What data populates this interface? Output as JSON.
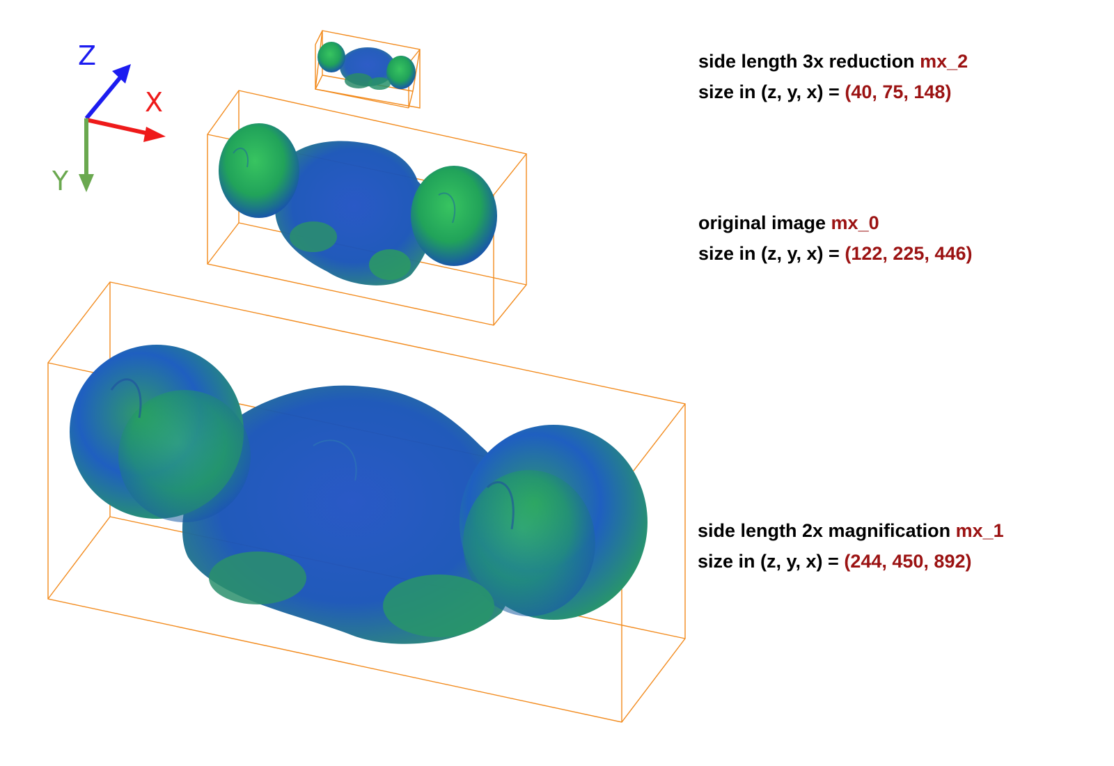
{
  "axes": {
    "z": {
      "label": "Z",
      "color": "#1c1cf0"
    },
    "x": {
      "label": "X",
      "color": "#ee1a1a"
    },
    "y": {
      "label": "Y",
      "color": "#6aa84f"
    }
  },
  "colors": {
    "box_outline": "#f28a1c",
    "volume_blue": "#1a3fc8",
    "volume_green": "#2fbf4a",
    "highlight_text": "#9b1212"
  },
  "volumes": [
    {
      "id": "mx_2",
      "line1_prefix": "side length 3x reduction ",
      "line1_name": "mx_2",
      "line2_prefix": "size in (z, y, x) = ",
      "line2_size": "(40, 75, 148)"
    },
    {
      "id": "mx_0",
      "line1_prefix": "original image ",
      "line1_name": "mx_0",
      "line2_prefix": "size in (z, y, x) = ",
      "line2_size": "(122, 225, 446)"
    },
    {
      "id": "mx_1",
      "line1_prefix": "side length 2x magnification ",
      "line1_name": "mx_1",
      "line2_prefix": "size in (z, y, x) = ",
      "line2_size": "(244, 450, 892)"
    }
  ]
}
